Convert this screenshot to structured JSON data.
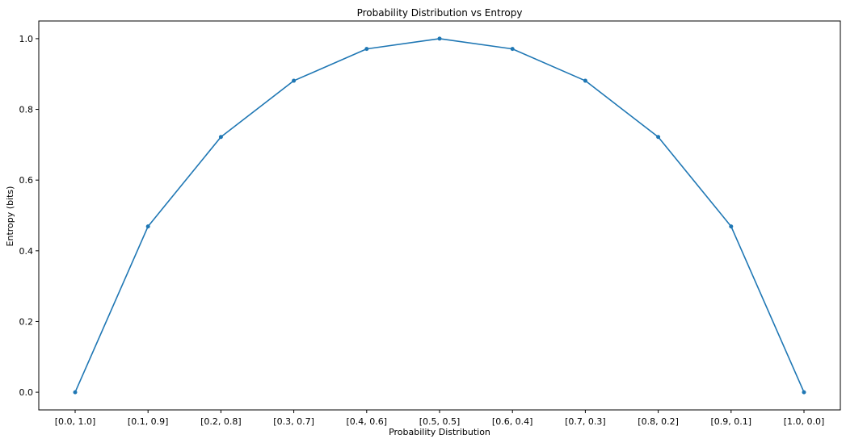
{
  "chart_data": {
    "type": "line",
    "title": "Probability Distribution vs Entropy",
    "xlabel": "Probability Distribution",
    "ylabel": "Entropy (bits)",
    "categories": [
      "[0.0, 1.0]",
      "[0.1, 0.9]",
      "[0.2, 0.8]",
      "[0.3, 0.7]",
      "[0.4, 0.6]",
      "[0.5, 0.5]",
      "[0.6, 0.4]",
      "[0.7, 0.3]",
      "[0.8, 0.2]",
      "[0.9, 0.1]",
      "[1.0, 0.0]"
    ],
    "series": [
      {
        "values": [
          0.0,
          0.469,
          0.722,
          0.881,
          0.971,
          1.0,
          0.971,
          0.881,
          0.722,
          0.469,
          0.0
        ],
        "color": "#1f77b4",
        "marker": "circle"
      }
    ],
    "ylim": [
      -0.05,
      1.05
    ],
    "yticks": [
      0.0,
      0.2,
      0.4,
      0.6,
      0.8,
      1.0
    ],
    "ytick_labels": [
      "0.0",
      "0.2",
      "0.4",
      "0.6",
      "0.8",
      "1.0"
    ],
    "grid": false,
    "legend": "none"
  }
}
